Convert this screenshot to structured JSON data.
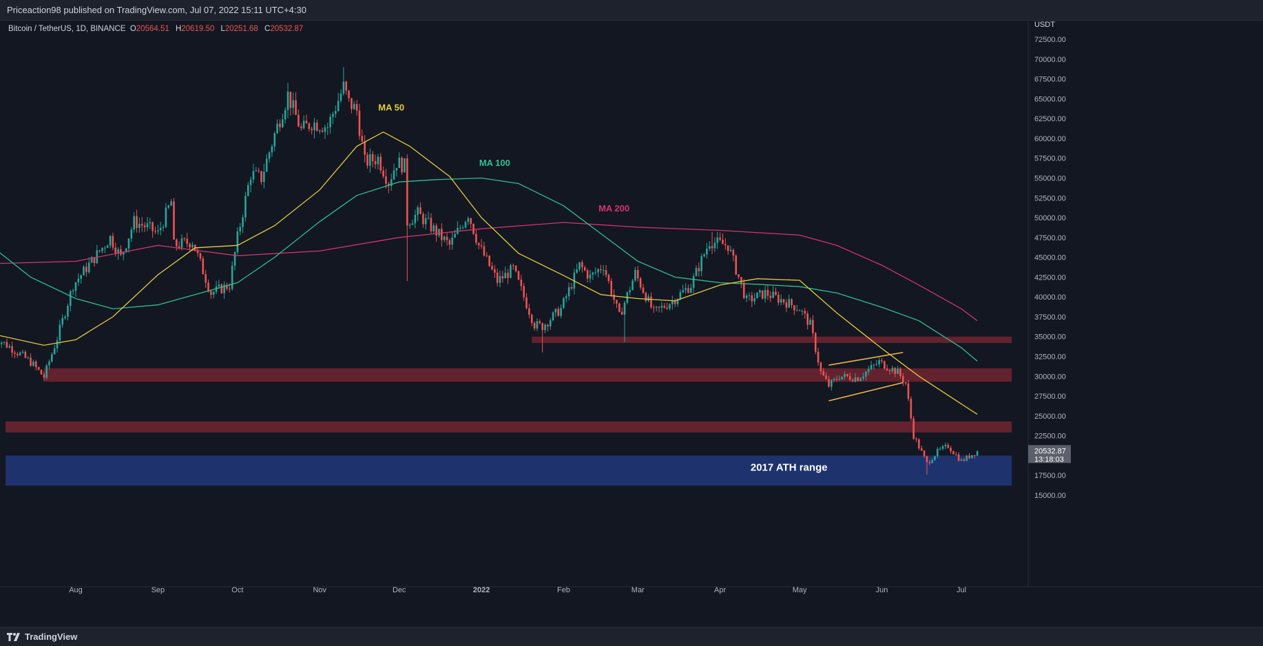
{
  "header": {
    "publisher": "Priceaction98 published on TradingView.com, Jul 07, 2022 15:11 UTC+4:30"
  },
  "symbol": {
    "name": "Bitcoin / TetherUS, 1D, BINANCE",
    "open_label": "O",
    "open": "20564.51",
    "high_label": "H",
    "high": "20619.50",
    "low_label": "L",
    "low": "20251.68",
    "close_label": "C",
    "close": "20532.87"
  },
  "footer": {
    "brand": "TradingView",
    "logo_icon": "tradingview-logo-icon"
  },
  "colors": {
    "background": "#131722",
    "up": "#26a69a",
    "down": "#ef5350",
    "ma50": "#e6cc3f",
    "ma100": "#2fbf8f",
    "ma200": "#d6336c",
    "zone": "#6b2430",
    "ath_zone": "#1f3572",
    "wedge": "#f0b547"
  },
  "chart_data": {
    "type": "candlestick",
    "title": "Bitcoin / TetherUS, 1D, BINANCE",
    "y_unit": "USDT",
    "ylim": [
      12500,
      74500
    ],
    "xlim": [
      "2022-07-10",
      "2022-07-20"
    ],
    "x_range": [
      "2021-07-01",
      "2022-07-20"
    ],
    "y_ticks": [
      15000,
      17500,
      20000,
      22500,
      25000,
      27500,
      30000,
      32500,
      35000,
      37500,
      40000,
      42500,
      45000,
      47500,
      50000,
      52500,
      55000,
      57500,
      60000,
      62500,
      65000,
      67500,
      70000,
      72500
    ],
    "y_tick_labels": [
      "15000.00",
      "17500.00",
      "20000.00",
      "22500.00",
      "25000.00",
      "27500.00",
      "30000.00",
      "32500.00",
      "35000.00",
      "37500.00",
      "40000.00",
      "42500.00",
      "45000.00",
      "47500.00",
      "50000.00",
      "52500.00",
      "55000.00",
      "57500.00",
      "60000.00",
      "62500.00",
      "65000.00",
      "67500.00",
      "70000.00",
      "72500.00"
    ],
    "x_ticks": [
      {
        "date": "2021-08-01",
        "label": "Aug"
      },
      {
        "date": "2021-09-01",
        "label": "Sep"
      },
      {
        "date": "2021-10-01",
        "label": "Oct"
      },
      {
        "date": "2021-11-01",
        "label": "Nov"
      },
      {
        "date": "2021-12-01",
        "label": "Dec"
      },
      {
        "date": "2022-01-01",
        "label": "2022"
      },
      {
        "date": "2022-02-01",
        "label": "Feb"
      },
      {
        "date": "2022-03-01",
        "label": "Mar"
      },
      {
        "date": "2022-04-01",
        "label": "Apr"
      },
      {
        "date": "2022-05-01",
        "label": "May"
      },
      {
        "date": "2022-06-01",
        "label": "Jun"
      },
      {
        "date": "2022-07-01",
        "label": "Jul"
      }
    ],
    "price_path": [
      [
        "2021-07-01",
        35000
      ],
      [
        "2021-07-08",
        33500
      ],
      [
        "2021-07-15",
        31800
      ],
      [
        "2021-07-20",
        29900
      ],
      [
        "2021-07-25",
        34800
      ],
      [
        "2021-07-31",
        41500
      ],
      [
        "2021-08-07",
        44500
      ],
      [
        "2021-08-14",
        47500
      ],
      [
        "2021-08-18",
        45000
      ],
      [
        "2021-08-23",
        49500
      ],
      [
        "2021-08-28",
        48800
      ],
      [
        "2021-09-01",
        48000
      ],
      [
        "2021-09-06",
        52000
      ],
      [
        "2021-09-07",
        46500
      ],
      [
        "2021-09-14",
        47000
      ],
      [
        "2021-09-21",
        40500
      ],
      [
        "2021-09-28",
        41500
      ],
      [
        "2021-10-01",
        47500
      ],
      [
        "2021-10-06",
        55500
      ],
      [
        "2021-10-10",
        55000
      ],
      [
        "2021-10-15",
        60500
      ],
      [
        "2021-10-20",
        65500
      ],
      [
        "2021-10-25",
        61000
      ],
      [
        "2021-10-29",
        62000
      ],
      [
        "2021-11-04",
        61500
      ],
      [
        "2021-11-10",
        66500
      ],
      [
        "2021-11-12",
        64500
      ],
      [
        "2021-11-15",
        63500
      ],
      [
        "2021-11-18",
        57000
      ],
      [
        "2021-11-23",
        57500
      ],
      [
        "2021-11-27",
        54500
      ],
      [
        "2021-11-30",
        57000
      ],
      [
        "2021-12-03",
        56500
      ],
      [
        "2021-12-04",
        49500
      ],
      [
        "2021-12-08",
        50500
      ],
      [
        "2021-12-14",
        48500
      ],
      [
        "2021-12-20",
        46500
      ],
      [
        "2021-12-27",
        50500
      ],
      [
        "2021-12-31",
        46500
      ],
      [
        "2022-01-07",
        42000
      ],
      [
        "2022-01-13",
        43500
      ],
      [
        "2022-01-21",
        36500
      ],
      [
        "2022-01-24",
        36300
      ],
      [
        "2022-01-31",
        38500
      ],
      [
        "2022-02-07",
        44000
      ],
      [
        "2022-02-11",
        42500
      ],
      [
        "2022-02-16",
        44000
      ],
      [
        "2022-02-22",
        37500
      ],
      [
        "2022-02-28",
        43000
      ],
      [
        "2022-03-07",
        38000
      ],
      [
        "2022-03-14",
        39500
      ],
      [
        "2022-03-21",
        41500
      ],
      [
        "2022-03-28",
        47000
      ],
      [
        "2022-04-04",
        46500
      ],
      [
        "2022-04-11",
        39500
      ],
      [
        "2022-04-18",
        40500
      ],
      [
        "2022-04-25",
        39500
      ],
      [
        "2022-05-01",
        38500
      ],
      [
        "2022-05-05",
        36500
      ],
      [
        "2022-05-09",
        30500
      ],
      [
        "2022-05-12",
        28800
      ],
      [
        "2022-05-16",
        30000
      ],
      [
        "2022-05-23",
        29800
      ],
      [
        "2022-05-31",
        31800
      ],
      [
        "2022-06-07",
        30500
      ],
      [
        "2022-06-10",
        29100
      ],
      [
        "2022-06-13",
        22500
      ],
      [
        "2022-06-18",
        19000
      ],
      [
        "2022-06-22",
        20500
      ],
      [
        "2022-06-26",
        21200
      ],
      [
        "2022-07-01",
        19300
      ],
      [
        "2022-07-07",
        20532
      ]
    ],
    "spike_lows": [
      [
        "2021-12-04",
        42000
      ],
      [
        "2022-02-24",
        34300
      ],
      [
        "2022-01-24",
        33000
      ],
      [
        "2022-06-18",
        17600
      ]
    ],
    "spike_highs": [
      [
        "2021-11-10",
        69000
      ],
      [
        "2021-10-20",
        67000
      ],
      [
        "2022-03-29",
        48200
      ]
    ],
    "ma50": [
      [
        "2021-07-01",
        35300
      ],
      [
        "2021-07-20",
        33900
      ],
      [
        "2021-08-01",
        34600
      ],
      [
        "2021-08-15",
        37500
      ],
      [
        "2021-09-01",
        42800
      ],
      [
        "2021-09-15",
        46200
      ],
      [
        "2021-10-01",
        46500
      ],
      [
        "2021-10-15",
        49000
      ],
      [
        "2021-11-01",
        53500
      ],
      [
        "2021-11-15",
        59000
      ],
      [
        "2021-11-25",
        60800
      ],
      [
        "2021-12-05",
        59000
      ],
      [
        "2021-12-20",
        55200
      ],
      [
        "2022-01-01",
        50000
      ],
      [
        "2022-01-15",
        45500
      ],
      [
        "2022-02-01",
        42700
      ],
      [
        "2022-02-15",
        40300
      ],
      [
        "2022-03-01",
        39800
      ],
      [
        "2022-03-15",
        39500
      ],
      [
        "2022-04-01",
        41500
      ],
      [
        "2022-04-15",
        42300
      ],
      [
        "2022-05-01",
        42100
      ],
      [
        "2022-05-15",
        38000
      ],
      [
        "2022-06-01",
        33500
      ],
      [
        "2022-06-15",
        30000
      ],
      [
        "2022-07-01",
        26500
      ],
      [
        "2022-07-07",
        25200
      ]
    ],
    "ma100": [
      [
        "2021-07-01",
        46200
      ],
      [
        "2021-07-15",
        42500
      ],
      [
        "2021-08-01",
        39800
      ],
      [
        "2021-08-15",
        38500
      ],
      [
        "2021-09-01",
        39000
      ],
      [
        "2021-09-15",
        40300
      ],
      [
        "2021-10-01",
        41800
      ],
      [
        "2021-10-15",
        45000
      ],
      [
        "2021-11-01",
        49500
      ],
      [
        "2021-11-15",
        52800
      ],
      [
        "2021-12-01",
        54500
      ],
      [
        "2021-12-15",
        54800
      ],
      [
        "2022-01-01",
        55000
      ],
      [
        "2022-01-15",
        54300
      ],
      [
        "2022-02-01",
        51500
      ],
      [
        "2022-02-15",
        48000
      ],
      [
        "2022-03-01",
        44500
      ],
      [
        "2022-03-15",
        42500
      ],
      [
        "2022-04-01",
        41800
      ],
      [
        "2022-04-15",
        41600
      ],
      [
        "2022-05-01",
        41300
      ],
      [
        "2022-05-15",
        40500
      ],
      [
        "2022-06-01",
        38700
      ],
      [
        "2022-06-15",
        37000
      ],
      [
        "2022-07-01",
        33600
      ],
      [
        "2022-07-07",
        31900
      ]
    ],
    "ma200": [
      [
        "2021-07-01",
        44200
      ],
      [
        "2021-08-01",
        44500
      ],
      [
        "2021-09-01",
        46500
      ],
      [
        "2021-10-01",
        45200
      ],
      [
        "2021-11-01",
        45800
      ],
      [
        "2021-12-01",
        47500
      ],
      [
        "2022-01-01",
        48600
      ],
      [
        "2022-02-01",
        49400
      ],
      [
        "2022-03-01",
        48800
      ],
      [
        "2022-04-01",
        48400
      ],
      [
        "2022-05-01",
        47800
      ],
      [
        "2022-05-15",
        46500
      ],
      [
        "2022-06-01",
        44000
      ],
      [
        "2022-06-15",
        41500
      ],
      [
        "2022-07-01",
        38500
      ],
      [
        "2022-07-07",
        37000
      ]
    ],
    "zones": [
      {
        "from": "2022-01-20",
        "to": "2022-07-20",
        "low": 34200,
        "high": 35000
      },
      {
        "from": "2021-07-20",
        "to": "2022-07-20",
        "low": 29300,
        "high": 31000
      },
      {
        "from": "2021-07-01",
        "to": "2022-07-20",
        "low": 22900,
        "high": 24300
      }
    ],
    "ath_zone": {
      "from": "2021-07-01",
      "to": "2022-07-20",
      "low": 16200,
      "high": 20000
    },
    "wedge": {
      "upper": [
        [
          "2022-05-12",
          31400
        ],
        [
          "2022-06-09",
          33000
        ]
      ],
      "lower": [
        [
          "2022-05-12",
          26900
        ],
        [
          "2022-06-09",
          29200
        ]
      ]
    },
    "labels": [
      {
        "text": "MA 50",
        "date": "2021-11-28",
        "price": 63500,
        "color": "ma50"
      },
      {
        "text": "MA 100",
        "date": "2022-01-06",
        "price": 56500,
        "color": "ma100"
      },
      {
        "text": "MA 200",
        "date": "2022-02-20",
        "price": 50800,
        "color": "ma200"
      },
      {
        "text": "2017 ATH range",
        "date": "2022-04-27",
        "price": 18100,
        "color": "white"
      }
    ],
    "last_price": {
      "value": 20532.87,
      "label": "20532.87",
      "countdown": "13:18:03"
    }
  }
}
